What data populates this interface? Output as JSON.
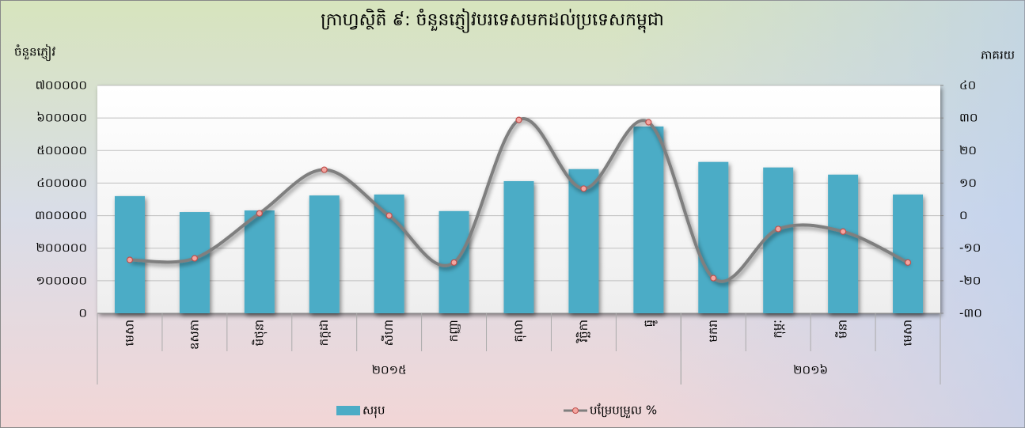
{
  "chart_data": {
    "type": "bar-line",
    "title": "ក្រាហ្វស្ថិតិ ៩: ចំនួនភ្ញៀវបរទេសមកដល់ប្រទេសកម្ពុជា",
    "y_label": "ចំនួនភ្ញៀវ",
    "y2_label": "ភាគរយ",
    "category_groups": [
      {
        "label": "២០១៥",
        "categories": [
          "មេសា",
          "ឧសភា",
          "មិថុនា",
          "កក្កដា",
          "សីហា",
          "កញ្ញា",
          "តុលា",
          "វិច្ឆិកា",
          "ធ្នូ"
        ]
      },
      {
        "label": "២០១៦",
        "categories": [
          "មករា",
          "កុម្ភៈ",
          "មីនា",
          "មេសា"
        ]
      }
    ],
    "series": [
      {
        "name": "សរុប",
        "type": "bar",
        "color": "#4bacc6",
        "values": [
          360000,
          311000,
          316000,
          362000,
          365000,
          314000,
          406000,
          443000,
          574000,
          465000,
          448000,
          426000,
          365000
        ]
      },
      {
        "name": "បម្រែបម្រួល %",
        "type": "line",
        "axis": "y2",
        "color": "#7f7f7f",
        "marker_color": "#f4a6a0",
        "values": [
          -13.6,
          -13.1,
          0.7,
          14.1,
          0,
          -14.4,
          29.4,
          8.3,
          28.7,
          -19.2,
          -4.1,
          -4.9,
          -14.4
        ]
      }
    ],
    "ylim": [
      0,
      700000
    ],
    "yticks": [
      {
        "value": 0,
        "label": "០"
      },
      {
        "value": 100000,
        "label": "១០០០០០"
      },
      {
        "value": 200000,
        "label": "២០០០០០"
      },
      {
        "value": 300000,
        "label": "៣០០០០០"
      },
      {
        "value": 400000,
        "label": "៤០០០០០"
      },
      {
        "value": 500000,
        "label": "៥០០០០០"
      },
      {
        "value": 600000,
        "label": "៦០០០០០"
      },
      {
        "value": 700000,
        "label": "៧០០០០០"
      }
    ],
    "y2lim": [
      -30,
      40
    ],
    "y2ticks": [
      {
        "value": -30,
        "label": "-៣០"
      },
      {
        "value": -20,
        "label": "-២០"
      },
      {
        "value": -10,
        "label": "-១០"
      },
      {
        "value": 0,
        "label": "០"
      },
      {
        "value": 10,
        "label": "១០"
      },
      {
        "value": 20,
        "label": "២០"
      },
      {
        "value": 30,
        "label": "៣០"
      },
      {
        "value": 40,
        "label": "៤០"
      }
    ],
    "grid": true,
    "legend": "bottom"
  }
}
